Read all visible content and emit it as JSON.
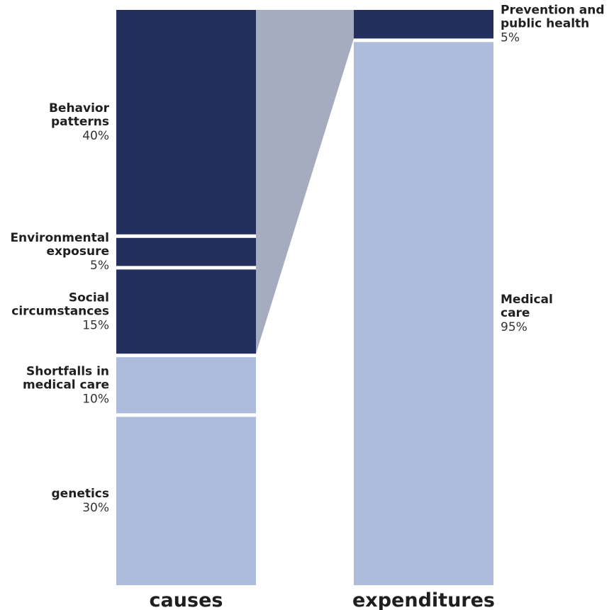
{
  "chart_data": {
    "type": "stacked-bar",
    "colors": {
      "dark": "#23305e",
      "light": "#adbcdc",
      "connector": "#a6acc0"
    },
    "columns": [
      {
        "key": "causes",
        "title": "causes",
        "segments": [
          {
            "label": [
              "Behavior",
              "patterns"
            ],
            "percent": 40,
            "value_label": "40%",
            "group": "dark"
          },
          {
            "label": [
              "Environmental",
              "exposure"
            ],
            "percent": 5,
            "value_label": "5%",
            "group": "dark"
          },
          {
            "label": [
              "Social",
              "circumstances"
            ],
            "percent": 15,
            "value_label": "15%",
            "group": "dark"
          },
          {
            "label": [
              "Shortfalls in",
              "medical care"
            ],
            "percent": 10,
            "value_label": "10%",
            "group": "light"
          },
          {
            "label": [
              "genetics"
            ],
            "percent": 30,
            "value_label": "30%",
            "group": "light"
          }
        ]
      },
      {
        "key": "expenditures",
        "title": "expenditures",
        "segments": [
          {
            "label": [
              "Prevention and",
              "public health"
            ],
            "percent": 5,
            "value_label": "5%",
            "group": "dark"
          },
          {
            "label": [
              "Medical",
              "care"
            ],
            "percent": 95,
            "value_label": "95%",
            "group": "light"
          }
        ]
      }
    ],
    "connector": {
      "from_column": "causes",
      "to_column": "expenditures",
      "group": "dark"
    }
  }
}
